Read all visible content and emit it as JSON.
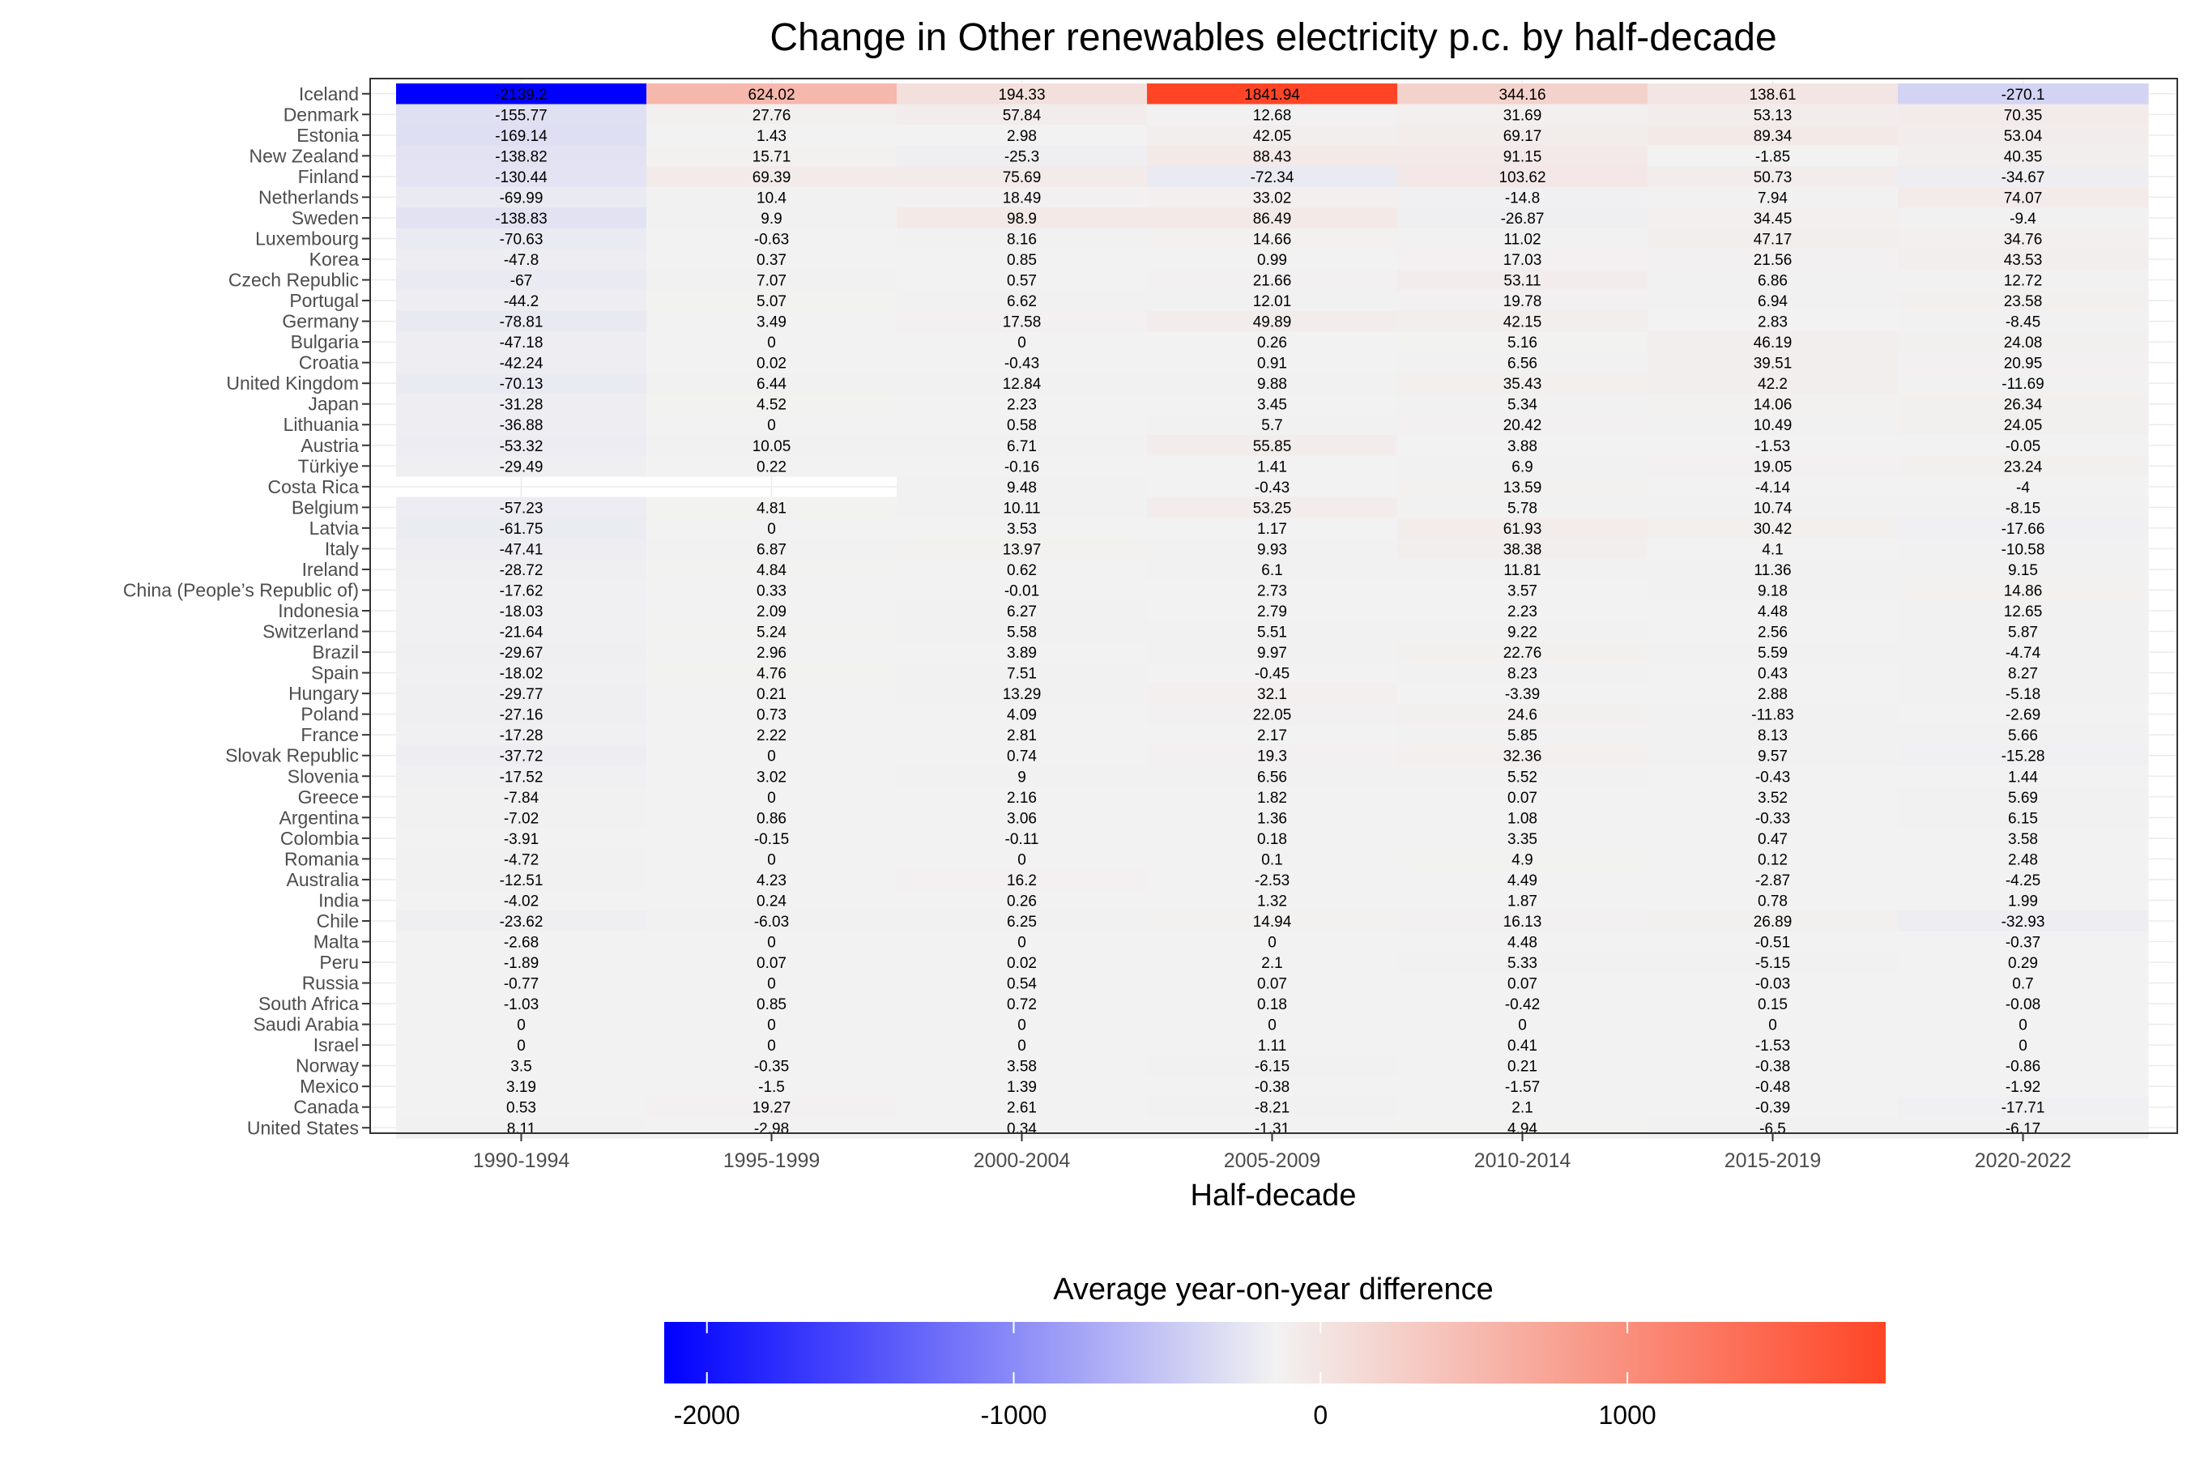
{
  "chart_data": {
    "type": "heatmap",
    "title": "Change in Other renewables electricity p.c. by half-decade",
    "xlabel": "Half-decade",
    "ylabel": "",
    "columns": [
      "1990-1994",
      "1995-1999",
      "2000-2004",
      "2005-2009",
      "2010-2014",
      "2015-2019",
      "2020-2022"
    ],
    "rows": [
      {
        "country": "Iceland",
        "values": [
          -2139.2,
          624.02,
          194.33,
          1841.94,
          344.16,
          138.61,
          -270.1
        ]
      },
      {
        "country": "Denmark",
        "values": [
          -155.77,
          27.76,
          57.84,
          12.68,
          31.69,
          53.13,
          70.35
        ]
      },
      {
        "country": "Estonia",
        "values": [
          -169.14,
          1.43,
          2.98,
          42.05,
          69.17,
          89.34,
          53.04
        ]
      },
      {
        "country": "New Zealand",
        "values": [
          -138.82,
          15.71,
          -25.3,
          88.43,
          91.15,
          -1.85,
          40.35
        ]
      },
      {
        "country": "Finland",
        "values": [
          -130.44,
          69.39,
          75.69,
          -72.34,
          103.62,
          50.73,
          -34.67
        ]
      },
      {
        "country": "Netherlands",
        "values": [
          -69.99,
          10.4,
          18.49,
          33.02,
          -14.8,
          7.94,
          74.07
        ]
      },
      {
        "country": "Sweden",
        "values": [
          -138.83,
          9.9,
          98.9,
          86.49,
          -26.87,
          34.45,
          -9.4
        ]
      },
      {
        "country": "Luxembourg",
        "values": [
          -70.63,
          -0.63,
          8.16,
          14.66,
          11.02,
          47.17,
          34.76
        ]
      },
      {
        "country": "Korea",
        "values": [
          -47.8,
          0.37,
          0.85,
          0.99,
          17.03,
          21.56,
          43.53
        ]
      },
      {
        "country": "Czech Republic",
        "values": [
          -67,
          7.07,
          0.57,
          21.66,
          53.11,
          6.86,
          12.72
        ]
      },
      {
        "country": "Portugal",
        "values": [
          -44.2,
          5.07,
          6.62,
          12.01,
          19.78,
          6.94,
          23.58
        ]
      },
      {
        "country": "Germany",
        "values": [
          -78.81,
          3.49,
          17.58,
          49.89,
          42.15,
          2.83,
          -8.45
        ]
      },
      {
        "country": "Bulgaria",
        "values": [
          -47.18,
          0,
          0,
          0.26,
          5.16,
          46.19,
          24.08
        ]
      },
      {
        "country": "Croatia",
        "values": [
          -42.24,
          0.02,
          -0.43,
          0.91,
          6.56,
          39.51,
          20.95
        ]
      },
      {
        "country": "United Kingdom",
        "values": [
          -70.13,
          6.44,
          12.84,
          9.88,
          35.43,
          42.2,
          -11.69
        ]
      },
      {
        "country": "Japan",
        "values": [
          -31.28,
          4.52,
          2.23,
          3.45,
          5.34,
          14.06,
          26.34
        ]
      },
      {
        "country": "Lithuania",
        "values": [
          -36.88,
          0,
          0.58,
          5.7,
          20.42,
          10.49,
          24.05
        ]
      },
      {
        "country": "Austria",
        "values": [
          -53.32,
          10.05,
          6.71,
          55.85,
          3.88,
          -1.53,
          -0.05
        ]
      },
      {
        "country": "Türkiye",
        "values": [
          -29.49,
          0.22,
          -0.16,
          1.41,
          6.9,
          19.05,
          23.24
        ]
      },
      {
        "country": "Costa Rica",
        "values": [
          null,
          null,
          9.48,
          -0.43,
          13.59,
          -4.14,
          -4
        ]
      },
      {
        "country": "Belgium",
        "values": [
          -57.23,
          4.81,
          10.11,
          53.25,
          5.78,
          10.74,
          -8.15
        ]
      },
      {
        "country": "Latvia",
        "values": [
          -61.75,
          0,
          3.53,
          1.17,
          61.93,
          30.42,
          -17.66
        ]
      },
      {
        "country": "Italy",
        "values": [
          -47.41,
          6.87,
          13.97,
          9.93,
          38.38,
          4.1,
          -10.58
        ]
      },
      {
        "country": "Ireland",
        "values": [
          -28.72,
          4.84,
          0.62,
          6.1,
          11.81,
          11.36,
          9.15
        ]
      },
      {
        "country": "China (People’s Republic of)",
        "values": [
          -17.62,
          0.33,
          -0.01,
          2.73,
          3.57,
          9.18,
          14.86
        ]
      },
      {
        "country": "Indonesia",
        "values": [
          -18.03,
          2.09,
          6.27,
          2.79,
          2.23,
          4.48,
          12.65
        ]
      },
      {
        "country": "Switzerland",
        "values": [
          -21.64,
          5.24,
          5.58,
          5.51,
          9.22,
          2.56,
          5.87
        ]
      },
      {
        "country": "Brazil",
        "values": [
          -29.67,
          2.96,
          3.89,
          9.97,
          22.76,
          5.59,
          -4.74
        ]
      },
      {
        "country": "Spain",
        "values": [
          -18.02,
          4.76,
          7.51,
          -0.45,
          8.23,
          0.43,
          8.27
        ]
      },
      {
        "country": "Hungary",
        "values": [
          -29.77,
          0.21,
          13.29,
          32.1,
          -3.39,
          2.88,
          -5.18
        ]
      },
      {
        "country": "Poland",
        "values": [
          -27.16,
          0.73,
          4.09,
          22.05,
          24.6,
          -11.83,
          -2.69
        ]
      },
      {
        "country": "France",
        "values": [
          -17.28,
          2.22,
          2.81,
          2.17,
          5.85,
          8.13,
          5.66
        ]
      },
      {
        "country": "Slovak Republic",
        "values": [
          -37.72,
          0,
          0.74,
          19.3,
          32.36,
          9.57,
          -15.28
        ]
      },
      {
        "country": "Slovenia",
        "values": [
          -17.52,
          3.02,
          9,
          6.56,
          5.52,
          -0.43,
          1.44
        ]
      },
      {
        "country": "Greece",
        "values": [
          -7.84,
          0,
          2.16,
          1.82,
          0.07,
          3.52,
          5.69
        ]
      },
      {
        "country": "Argentina",
        "values": [
          -7.02,
          0.86,
          3.06,
          1.36,
          1.08,
          -0.33,
          6.15
        ]
      },
      {
        "country": "Colombia",
        "values": [
          -3.91,
          -0.15,
          -0.11,
          0.18,
          3.35,
          0.47,
          3.58
        ]
      },
      {
        "country": "Romania",
        "values": [
          -4.72,
          0,
          0,
          0.1,
          4.9,
          0.12,
          2.48
        ]
      },
      {
        "country": "Australia",
        "values": [
          -12.51,
          4.23,
          16.2,
          -2.53,
          4.49,
          -2.87,
          -4.25
        ]
      },
      {
        "country": "India",
        "values": [
          -4.02,
          0.24,
          0.26,
          1.32,
          1.87,
          0.78,
          1.99
        ]
      },
      {
        "country": "Chile",
        "values": [
          -23.62,
          -6.03,
          6.25,
          14.94,
          16.13,
          26.89,
          -32.93
        ]
      },
      {
        "country": "Malta",
        "values": [
          -2.68,
          0,
          0,
          0,
          4.48,
          -0.51,
          -0.37
        ]
      },
      {
        "country": "Peru",
        "values": [
          -1.89,
          0.07,
          0.02,
          2.1,
          5.33,
          -5.15,
          0.29
        ]
      },
      {
        "country": "Russia",
        "values": [
          -0.77,
          0,
          0.54,
          0.07,
          0.07,
          -0.03,
          0.7
        ]
      },
      {
        "country": "South Africa",
        "values": [
          -1.03,
          0.85,
          0.72,
          0.18,
          -0.42,
          0.15,
          -0.08
        ]
      },
      {
        "country": "Saudi Arabia",
        "values": [
          0,
          0,
          0,
          0,
          0,
          0,
          0
        ]
      },
      {
        "country": "Israel",
        "values": [
          0,
          0,
          0,
          1.11,
          0.41,
          -1.53,
          0
        ]
      },
      {
        "country": "Norway",
        "values": [
          3.5,
          -0.35,
          3.58,
          -6.15,
          0.21,
          -0.38,
          -0.86
        ]
      },
      {
        "country": "Mexico",
        "values": [
          3.19,
          -1.5,
          1.39,
          -0.38,
          -1.57,
          -0.48,
          -1.92
        ]
      },
      {
        "country": "Canada",
        "values": [
          0.53,
          19.27,
          2.61,
          -8.21,
          2.1,
          -0.39,
          -17.71
        ]
      },
      {
        "country": "United States",
        "values": [
          8.11,
          -2.98,
          0.34,
          -1.31,
          4.94,
          -6.5,
          -6.17
        ]
      }
    ],
    "legend": {
      "title": "Average year-on-year difference",
      "ticks": [
        -2000,
        -1000,
        0,
        1000
      ],
      "min": -2139.2,
      "max": 1841.94,
      "placement": "bottom"
    },
    "colors": {
      "low": "#0000ff",
      "mid": "#f2f2f2",
      "high": "#ff4526"
    },
    "grid": true
  }
}
